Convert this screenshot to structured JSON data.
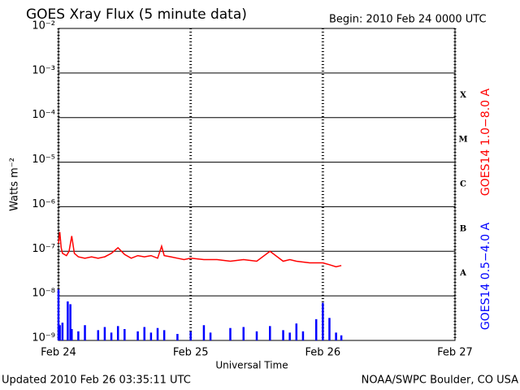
{
  "chart_data": {
    "type": "line",
    "title": "GOES Xray Flux (5 minute data)",
    "subtitle": "Begin:  2010 Feb 24 0000 UTC",
    "x_label": "Universal Time",
    "y_label": "Watts m⁻²",
    "footer_left": "Updated 2010 Feb 26 03:35:11 UTC",
    "footer_right": "NOAA/SWPC Boulder, CO USA",
    "yscale": "log",
    "grid": true,
    "xlim": [
      0,
      3
    ],
    "xticks": [
      {
        "value": 0,
        "label": "Feb 24"
      },
      {
        "value": 1,
        "label": "Feb 25"
      },
      {
        "value": 2,
        "label": "Feb 26"
      },
      {
        "value": 3,
        "label": "Feb 27"
      }
    ],
    "ylim": [
      1e-09,
      0.01
    ],
    "yticks": [
      {
        "value": 1e-09,
        "label": "10⁻⁹"
      },
      {
        "value": 1e-08,
        "label": "10⁻⁸"
      },
      {
        "value": 1e-07,
        "label": "10⁻⁷"
      },
      {
        "value": 1e-06,
        "label": "10⁻⁶"
      },
      {
        "value": 1e-05,
        "label": "10⁻⁵"
      },
      {
        "value": 0.0001,
        "label": "10⁻⁴"
      },
      {
        "value": 0.001,
        "label": "10⁻³"
      },
      {
        "value": 0.01,
        "label": "10⁻²"
      }
    ],
    "flare_classes": [
      {
        "label": "A",
        "value": 1e-08
      },
      {
        "label": "B",
        "value": 1e-07
      },
      {
        "label": "C",
        "value": 1e-06
      },
      {
        "label": "M",
        "value": 1e-05
      },
      {
        "label": "X",
        "value": 0.0001
      }
    ],
    "series": [
      {
        "name": "GOES14 1.0−8.0 A",
        "color": "#ff0000",
        "style": "line",
        "x": [
          0,
          0.01,
          0.02,
          0.03,
          0.06,
          0.08,
          0.1,
          0.12,
          0.15,
          0.2,
          0.25,
          0.3,
          0.35,
          0.4,
          0.45,
          0.5,
          0.55,
          0.6,
          0.65,
          0.7,
          0.75,
          0.78,
          0.8,
          0.85,
          0.9,
          0.95,
          1.0,
          1.1,
          1.2,
          1.3,
          1.4,
          1.5,
          1.6,
          1.7,
          1.75,
          1.8,
          1.9,
          2.0,
          2.05,
          2.1,
          2.14
        ],
        "values": [
          1.5e-07,
          2.7e-07,
          1.2e-07,
          9e-08,
          8e-08,
          1e-07,
          2.2e-07,
          9e-08,
          7.5e-08,
          7e-08,
          7.5e-08,
          7e-08,
          7.5e-08,
          9e-08,
          1.2e-07,
          8.5e-08,
          7e-08,
          8e-08,
          7.5e-08,
          8e-08,
          7e-08,
          1.3e-07,
          8e-08,
          7.5e-08,
          7e-08,
          6.5e-08,
          7e-08,
          6.5e-08,
          6.5e-08,
          6e-08,
          6.5e-08,
          6e-08,
          1e-07,
          6e-08,
          6.5e-08,
          6e-08,
          5.5e-08,
          5.5e-08,
          5e-08,
          4.5e-08,
          4.8e-08
        ]
      },
      {
        "name": "GOES14 0.5−4.0 A",
        "color": "#0000ff",
        "style": "spikes",
        "x": [
          0,
          0.01,
          0.03,
          0.07,
          0.09,
          0.1,
          0.15,
          0.2,
          0.3,
          0.35,
          0.4,
          0.45,
          0.5,
          0.6,
          0.65,
          0.7,
          0.75,
          0.8,
          0.9,
          1.0,
          1.1,
          1.15,
          1.3,
          1.4,
          1.5,
          1.6,
          1.7,
          1.75,
          1.8,
          1.85,
          1.95,
          2.0,
          2.05,
          2.1,
          2.14
        ],
        "values": [
          1.4e-08,
          2.2e-09,
          2.5e-09,
          7.5e-09,
          6.5e-09,
          1.8e-09,
          1.6e-09,
          2.2e-09,
          1.7e-09,
          2e-09,
          1.5e-09,
          2.1e-09,
          1.8e-09,
          1.6e-09,
          2e-09,
          1.5e-09,
          1.9e-09,
          1.7e-09,
          1.4e-09,
          1.6e-09,
          2.2e-09,
          1.5e-09,
          1.9e-09,
          2e-09,
          1.6e-09,
          2.1e-09,
          1.7e-09,
          1.5e-09,
          2.4e-09,
          1.6e-09,
          3e-09,
          7e-09,
          3.2e-09,
          1.5e-09,
          1.3e-09
        ]
      }
    ]
  }
}
